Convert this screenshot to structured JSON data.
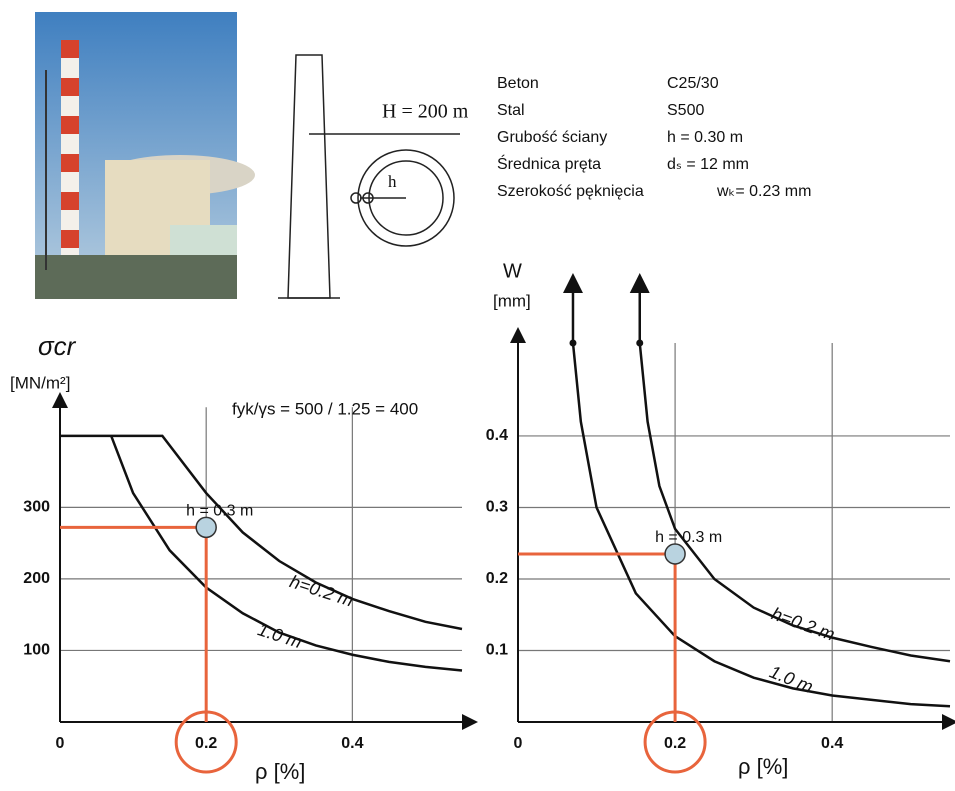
{
  "info_table": {
    "rows": [
      [
        "Beton",
        "C25/30"
      ],
      [
        "Stal",
        "S500"
      ],
      [
        "Grubość ściany",
        "h = 0.30 m"
      ],
      [
        "Średnica pręta",
        "dₛ = 12 mm"
      ],
      [
        "Szerokość pęknięcia",
        "wₖ= 0.23 mm"
      ]
    ]
  },
  "diagram": {
    "height_label": "H = 200 m",
    "thickness_label": "h"
  },
  "chart_data": [
    {
      "type": "line",
      "title": "σcr",
      "y_label": "[MN/m²]",
      "x_label": "ρ  [%]",
      "annotation": "fyk/γs = 500 / 1.25 = 400",
      "xlim": [
        0,
        0.55
      ],
      "ylim": [
        0,
        440
      ],
      "xticks": [
        0,
        0.2,
        0.4
      ],
      "yticks": [
        100,
        200,
        300
      ],
      "grid": true,
      "series": [
        {
          "name": "h=0.2 m",
          "color": "#111111",
          "x": [
            0,
            0.14,
            0.2,
            0.25,
            0.3,
            0.35,
            0.4,
            0.45,
            0.5,
            0.55
          ],
          "values": [
            400,
            400,
            320,
            265,
            225,
            195,
            172,
            155,
            140,
            130
          ]
        },
        {
          "name": "1.0 m",
          "color": "#111111",
          "x": [
            0.07,
            0.1,
            0.15,
            0.2,
            0.25,
            0.3,
            0.35,
            0.4,
            0.45,
            0.5,
            0.55
          ],
          "values": [
            400,
            320,
            240,
            188,
            152,
            125,
            107,
            94,
            84,
            77,
            72
          ]
        }
      ],
      "point": {
        "label": "h = 0.3 m",
        "x": 0.2,
        "value": 272,
        "color": "#e8643c"
      }
    },
    {
      "type": "line",
      "title": "W",
      "y_label": "[mm]",
      "x_label": "ρ  [%]",
      "xlim": [
        0,
        0.55
      ],
      "ylim": [
        0,
        0.53
      ],
      "xticks": [
        0,
        0.2,
        0.4
      ],
      "yticks": [
        0.1,
        0.2,
        0.3,
        0.4
      ],
      "grid": true,
      "series": [
        {
          "name": "h=0.2 m",
          "color": "#111111",
          "x": [
            0.155,
            0.165,
            0.18,
            0.2,
            0.25,
            0.3,
            0.35,
            0.4,
            0.45,
            0.5,
            0.55
          ],
          "values": [
            0.53,
            0.42,
            0.33,
            0.27,
            0.2,
            0.16,
            0.135,
            0.118,
            0.105,
            0.093,
            0.085
          ]
        },
        {
          "name": "1.0 m",
          "color": "#111111",
          "x": [
            0.07,
            0.08,
            0.1,
            0.15,
            0.2,
            0.25,
            0.3,
            0.35,
            0.4,
            0.5,
            0.55
          ],
          "values": [
            0.53,
            0.42,
            0.3,
            0.18,
            0.12,
            0.085,
            0.062,
            0.047,
            0.037,
            0.025,
            0.022
          ]
        }
      ],
      "point": {
        "label": "h = 0.3 m",
        "x": 0.2,
        "value": 0.235,
        "color": "#e8643c"
      }
    }
  ]
}
